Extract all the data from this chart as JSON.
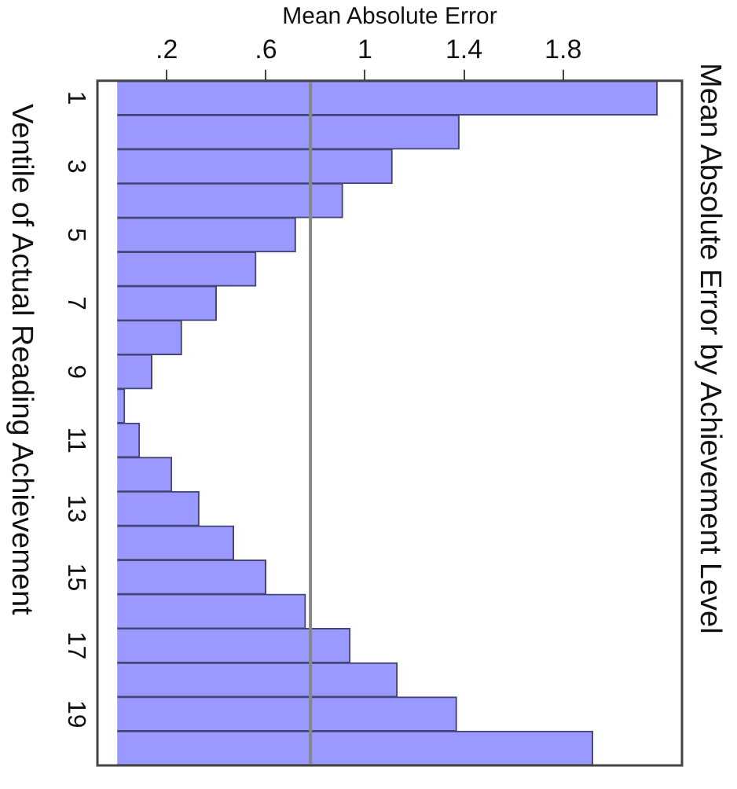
{
  "chart_data": {
    "type": "bar",
    "orientation": "horizontal",
    "title": "Mean Absolute Error by Achievement Level",
    "xlabel": "Mean Absolute Error",
    "ylabel": "Ventile of Actual Reading Achievement",
    "categories": [
      "1",
      null,
      "3",
      null,
      "5",
      null,
      "7",
      null,
      "9",
      null,
      "11",
      null,
      "13",
      null,
      "15",
      null,
      "17",
      null,
      "19",
      null
    ],
    "values": [
      2.18,
      1.38,
      1.11,
      0.91,
      0.72,
      0.56,
      0.4,
      0.26,
      0.14,
      0.03,
      0.09,
      0.22,
      0.33,
      0.47,
      0.6,
      0.76,
      0.94,
      1.13,
      1.37,
      1.92
    ],
    "color": "#9999ff",
    "xlim": [
      -0.08,
      2.28
    ],
    "xticks": [
      {
        "value": 0.2,
        "label": ".2"
      },
      {
        "value": 0.6,
        "label": ".6"
      },
      1,
      1.4,
      1.8
    ],
    "ref_lines": [
      {
        "axis": "x",
        "value": 0.78,
        "color": "#888888"
      }
    ],
    "grid": false,
    "legend": false
  }
}
